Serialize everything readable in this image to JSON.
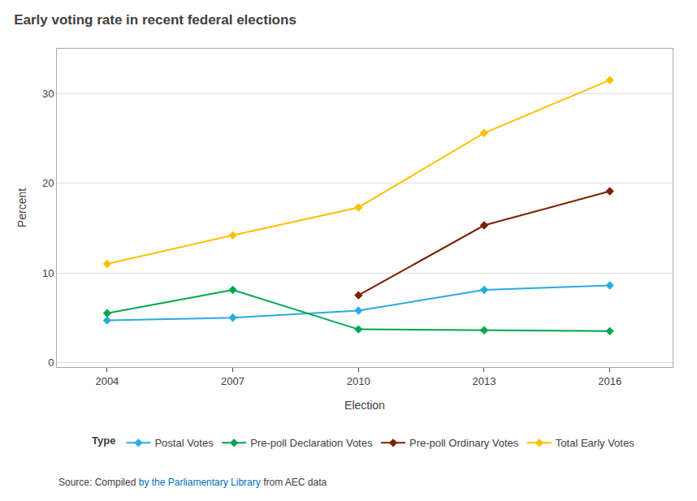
{
  "chart_data": {
    "type": "line",
    "title": "Early voting rate in recent federal elections",
    "x_label": "Election",
    "y_label": "Percent",
    "x": [
      2004,
      2007,
      2010,
      2013,
      2016
    ],
    "series": [
      {
        "name": "Postal Votes",
        "color": "#29ABE2",
        "marker": "diamond",
        "values": [
          4.7,
          5.0,
          5.8,
          8.1,
          8.6
        ]
      },
      {
        "name": "Pre-poll Declaration Votes",
        "color": "#00A650",
        "marker": "diamond",
        "values": [
          5.5,
          8.1,
          3.7,
          3.6,
          3.5
        ]
      },
      {
        "name": "Pre-poll Ordinary Votes",
        "color": "#7B2000",
        "marker": "diamond",
        "values": [
          null,
          null,
          7.5,
          15.3,
          19.1
        ]
      },
      {
        "name": "Total Early Votes",
        "color": "#FFC000",
        "marker": "diamond",
        "values": [
          11.0,
          14.2,
          17.3,
          25.6,
          31.5
        ]
      }
    ],
    "xlim": [
      2002.8,
      2017.5
    ],
    "xticks": [
      2004,
      2007,
      2010,
      2013,
      2016
    ],
    "ylim": [
      -0.5,
      35
    ],
    "yticks": [
      0,
      10,
      20,
      30
    ],
    "grid": "y",
    "legend": "bottom",
    "legend_title": "Type",
    "annotations": [
      {
        "text": "Source: Compiled ",
        "color": "#404040"
      },
      {
        "text": "by the Parliamentary Library",
        "color": "#0070C0"
      },
      {
        "text": " from AEC data",
        "color": "#404040"
      }
    ]
  }
}
